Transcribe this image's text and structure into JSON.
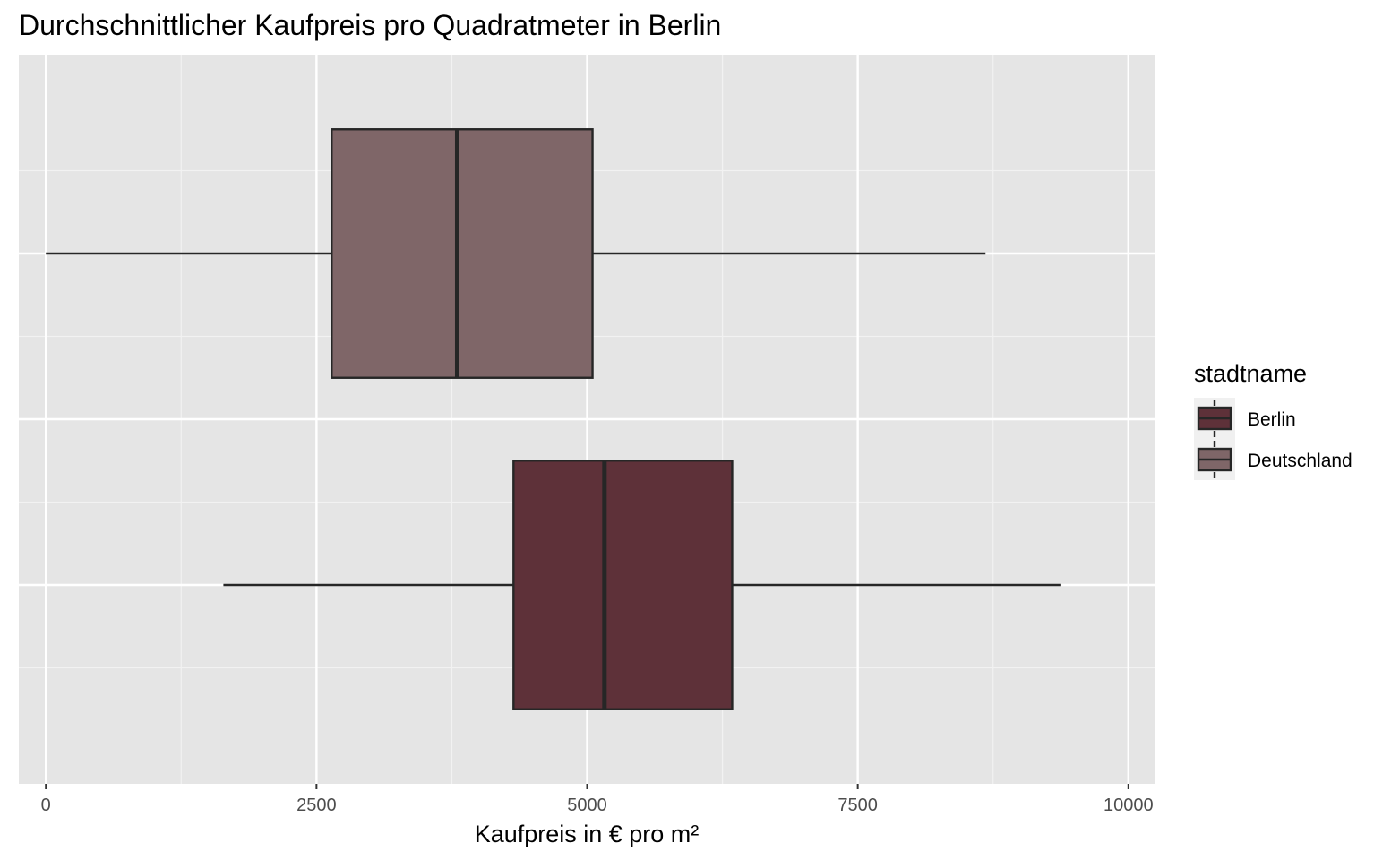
{
  "chart_data": {
    "type": "boxplot",
    "orientation": "horizontal",
    "title": "Durchschnittlicher Kaufpreis pro Quadratmeter in Berlin",
    "xlabel": "Kaufpreis in € pro m²",
    "ylabel": "",
    "xlim": [
      -250,
      10250
    ],
    "x_ticks": [
      0,
      2500,
      5000,
      7500,
      10000
    ],
    "x_tick_labels": [
      "0",
      "2500",
      "5000",
      "7500",
      "10000"
    ],
    "grid": true,
    "legend": {
      "title": "stadtname",
      "placement": "right"
    },
    "series": [
      {
        "name": "Deutschland",
        "color": "#7f6668",
        "whisker_low": 0,
        "q1": 2640,
        "median": 3800,
        "q3": 5050,
        "whisker_high": 8680
      },
      {
        "name": "Berlin",
        "color": "#5e3139",
        "whisker_low": 1640,
        "q1": 4320,
        "median": 5160,
        "q3": 6340,
        "whisker_high": 9380
      }
    ],
    "legend_order": [
      "Berlin",
      "Deutschland"
    ]
  },
  "style": {
    "panel_bg": "#e5e5e5",
    "grid_major": "#ffffff",
    "grid_minor": "#f2f2f2",
    "box_stroke": "#262626",
    "legend_key_bg": "#f0f0f0"
  }
}
